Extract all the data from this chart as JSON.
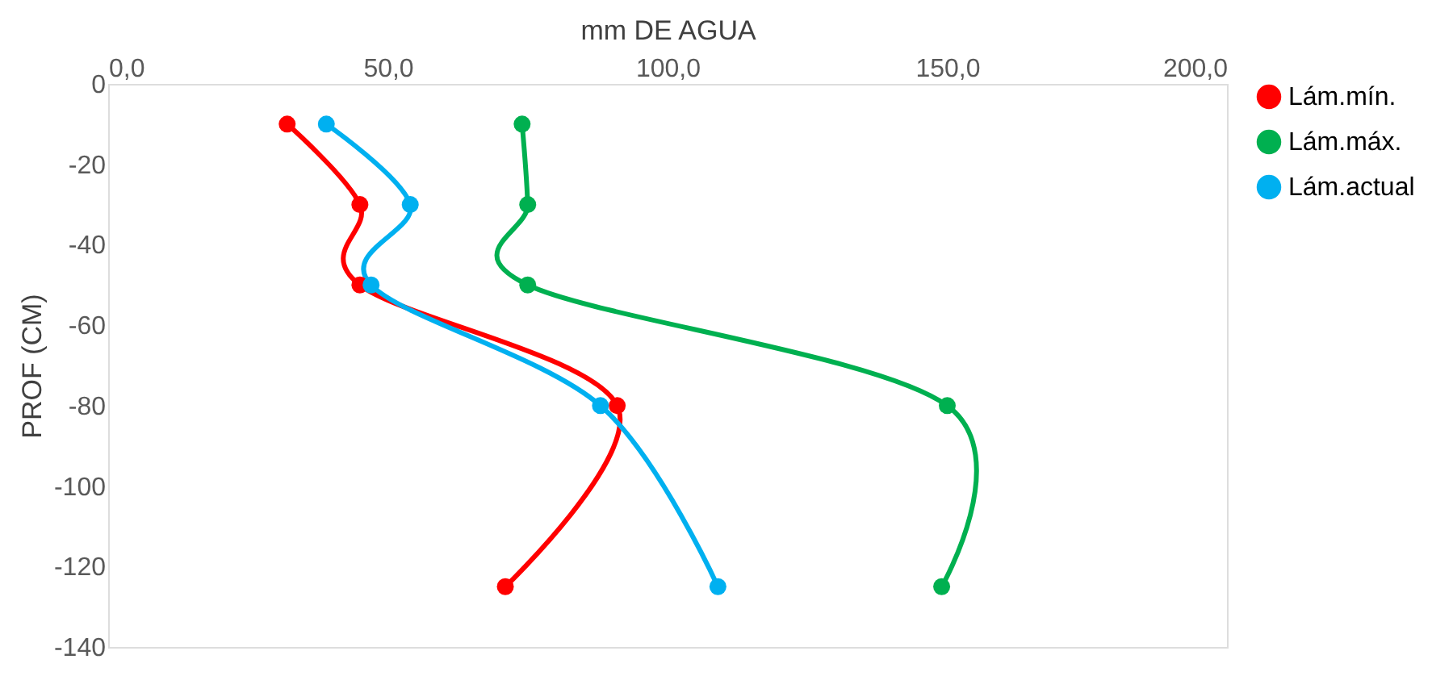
{
  "chart_data": {
    "type": "line",
    "xlabel": "mm DE AGUA",
    "ylabel": "PROF (CM)",
    "marker": "circle",
    "line_style": "solid",
    "grid": false,
    "legend": "right",
    "xlim": [
      0,
      200
    ],
    "ylim": [
      -140,
      0
    ],
    "xticks": [
      {
        "value": 0,
        "label": "0,0"
      },
      {
        "value": 50,
        "label": "50,0"
      },
      {
        "value": 100,
        "label": "100,0"
      },
      {
        "value": 150,
        "label": "150,0"
      },
      {
        "value": 200,
        "label": "200,0"
      }
    ],
    "yticks": [
      0,
      -20,
      -40,
      -60,
      -80,
      -100,
      -120,
      -140
    ],
    "series": [
      {
        "name": "Lám.mín.",
        "color": "#ff0000",
        "x": [
          32,
          45,
          45,
          91,
          71
        ],
        "values": [
          -10,
          -30,
          -50,
          -80,
          -125
        ]
      },
      {
        "name": "Lám.máx.",
        "color": "#00b050",
        "x": [
          74,
          75,
          75,
          150,
          149
        ],
        "values": [
          -10,
          -30,
          -50,
          -80,
          -125
        ]
      },
      {
        "name": "Lám.actual",
        "color": "#00b0f0",
        "x": [
          39,
          54,
          47,
          88,
          109
        ],
        "values": [
          -10,
          -30,
          -50,
          -80,
          -125
        ]
      }
    ]
  }
}
